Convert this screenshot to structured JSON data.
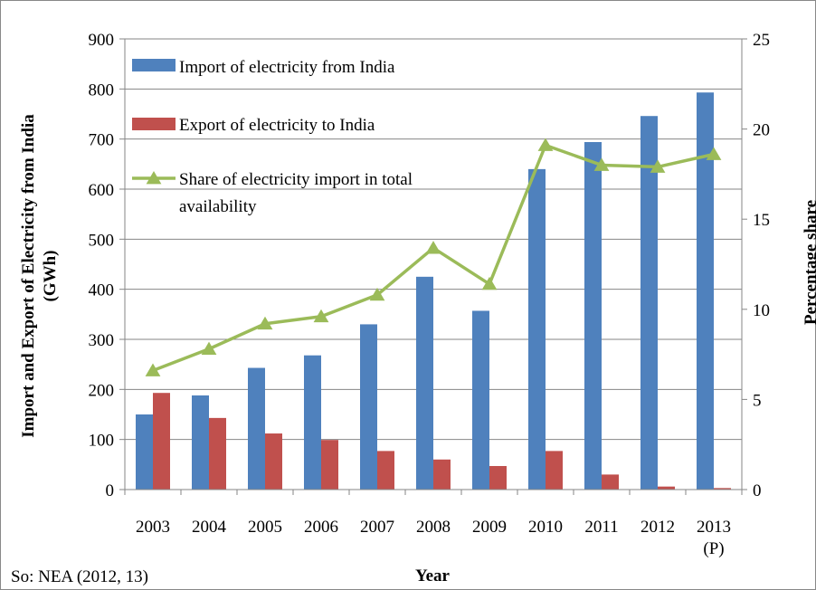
{
  "source_note": "So: NEA (2012, 13)",
  "chart_data": {
    "type": "bar",
    "categories": [
      "2003",
      "2004",
      "2005",
      "2006",
      "2007",
      "2008",
      "2009",
      "2010",
      "2011",
      "2012",
      "2013"
    ],
    "category_sublabels": [
      "",
      "",
      "",
      "",
      "",
      "",
      "",
      "",
      "",
      "",
      "(P)"
    ],
    "xlabel": "Year",
    "ylabel_lines": [
      "Import and Export of Electricity from India",
      "(GWh)"
    ],
    "y2label": "Percentage share",
    "ylim": [
      0,
      900
    ],
    "yticks": [
      0,
      100,
      200,
      300,
      400,
      500,
      600,
      700,
      800,
      900
    ],
    "y2lim": [
      0,
      25
    ],
    "y2ticks": [
      0,
      5,
      10,
      15,
      20,
      25
    ],
    "grid": true,
    "legend_position": "top-left inside plot",
    "series": [
      {
        "name": "Import of electricity from India",
        "kind": "bar",
        "axis": "left",
        "color": "#4F81BD",
        "values": [
          150,
          188,
          243,
          268,
          330,
          425,
          357,
          640,
          694,
          746,
          793
        ]
      },
      {
        "name": "Export of electricity to India",
        "kind": "bar",
        "axis": "left",
        "color": "#C0504D",
        "values": [
          193,
          143,
          112,
          99,
          77,
          60,
          47,
          77,
          30,
          6,
          3
        ]
      },
      {
        "name_lines": [
          "Share of electricity import in total",
          "availability"
        ],
        "kind": "line",
        "axis": "right",
        "color": "#9BBB59",
        "marker": "triangle",
        "values": [
          6.6,
          7.8,
          9.2,
          9.6,
          10.8,
          13.4,
          11.4,
          19.1,
          18.0,
          17.9,
          18.6
        ]
      }
    ]
  }
}
